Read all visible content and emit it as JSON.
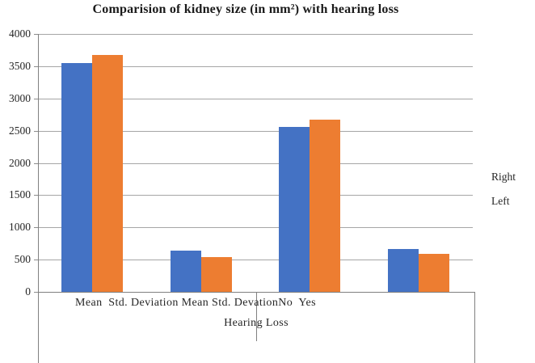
{
  "title": "Comparision of kidney size (in mm²) with hearing loss",
  "legend": {
    "items": [
      {
        "label": "Right",
        "color": "#4472C4"
      },
      {
        "label": "Left",
        "color": "#ED7D31"
      }
    ]
  },
  "x_axis": {
    "line1": "Mean  Std. Deviation Mean Std. DevationNo  Yes",
    "group_label": "Hearing Loss"
  },
  "chart_data": {
    "type": "bar",
    "title": "Comparision of kidney size (in mm²) with hearing loss",
    "categories": [
      "No - Mean",
      "No - Std. Deviation",
      "Yes - Mean",
      "Yes - Std. Devation"
    ],
    "series": [
      {
        "name": "Right",
        "color": "#4472C4",
        "values": [
          3550,
          640,
          2560,
          670
        ]
      },
      {
        "name": "Left",
        "color": "#ED7D31",
        "values": [
          3670,
          535,
          2670,
          585
        ]
      }
    ],
    "xlabel": "Hearing Loss",
    "ylabel": "",
    "ylim": [
      0,
      4000
    ],
    "yticks": [
      0,
      500,
      1000,
      1500,
      2000,
      2500,
      3000,
      3500,
      4000
    ],
    "grid": "horizontal",
    "legend_position": "right"
  },
  "colors": {
    "bar_blue": "#4472C4",
    "bar_orange": "#ED7D31",
    "gridline": "#a6a6a6",
    "axis": "#808080",
    "text": "#262626"
  }
}
